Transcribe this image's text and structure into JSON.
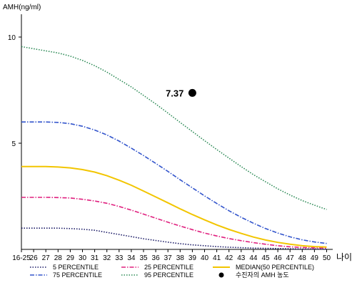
{
  "chart_data": {
    "type": "line",
    "title": "",
    "ylabel": "AMH(ng/ml)",
    "xlabel": "나이",
    "categories": [
      "16-25",
      "26",
      "27",
      "28",
      "29",
      "30",
      "31",
      "32",
      "33",
      "34",
      "35",
      "36",
      "37",
      "38",
      "39",
      "40",
      "41",
      "42",
      "43",
      "44",
      "45",
      "46",
      "47",
      "48",
      "49",
      "50"
    ],
    "yticks": [
      5,
      10
    ],
    "ylim": [
      0,
      11
    ],
    "grid": false,
    "legend_position": "bottom",
    "series": [
      {
        "name": "5 PERCENTILE",
        "color": "#1a1a66",
        "style": "dotted",
        "values": [
          1.0,
          1.0,
          1.0,
          1.0,
          0.98,
          0.95,
          0.9,
          0.8,
          0.7,
          0.6,
          0.5,
          0.42,
          0.34,
          0.27,
          0.21,
          0.17,
          0.13,
          0.1,
          0.08,
          0.06,
          0.05,
          0.04,
          0.03,
          0.02,
          0.02,
          0.01
        ]
      },
      {
        "name": "25 PERCENTILE",
        "color": "#e0207f",
        "style": "dashdot",
        "values": [
          2.45,
          2.45,
          2.45,
          2.44,
          2.42,
          2.36,
          2.28,
          2.17,
          2.02,
          1.85,
          1.66,
          1.47,
          1.28,
          1.1,
          0.93,
          0.77,
          0.63,
          0.51,
          0.41,
          0.32,
          0.24,
          0.17,
          0.12,
          0.09,
          0.07,
          0.06
        ]
      },
      {
        "name": "MEDIAN(50 PERCENTILE)",
        "color": "#f2c500",
        "style": "solid",
        "values": [
          3.9,
          3.9,
          3.9,
          3.88,
          3.84,
          3.76,
          3.64,
          3.47,
          3.26,
          3.02,
          2.75,
          2.47,
          2.19,
          1.91,
          1.64,
          1.39,
          1.15,
          0.94,
          0.75,
          0.58,
          0.44,
          0.33,
          0.24,
          0.17,
          0.13,
          0.11
        ]
      },
      {
        "name": "75 PERCENTILE",
        "color": "#3355cc",
        "style": "dashdot",
        "values": [
          6.0,
          6.0,
          6.0,
          5.98,
          5.92,
          5.8,
          5.62,
          5.39,
          5.1,
          4.77,
          4.42,
          4.05,
          3.67,
          3.28,
          2.9,
          2.52,
          2.16,
          1.82,
          1.51,
          1.23,
          0.98,
          0.77,
          0.59,
          0.45,
          0.35,
          0.28
        ]
      },
      {
        "name": "95 PERCENTILE",
        "color": "#2e8b57",
        "style": "dotted",
        "values": [
          9.55,
          9.45,
          9.35,
          9.25,
          9.1,
          8.9,
          8.65,
          8.35,
          8.0,
          7.65,
          7.25,
          6.85,
          6.42,
          5.98,
          5.55,
          5.12,
          4.7,
          4.3,
          3.9,
          3.52,
          3.18,
          2.85,
          2.56,
          2.3,
          2.08,
          1.88
        ]
      }
    ],
    "marker": {
      "name": "수진자의 AMH 농도",
      "category": "39",
      "value": 7.37,
      "label": "7.37",
      "color": "#000000"
    }
  }
}
